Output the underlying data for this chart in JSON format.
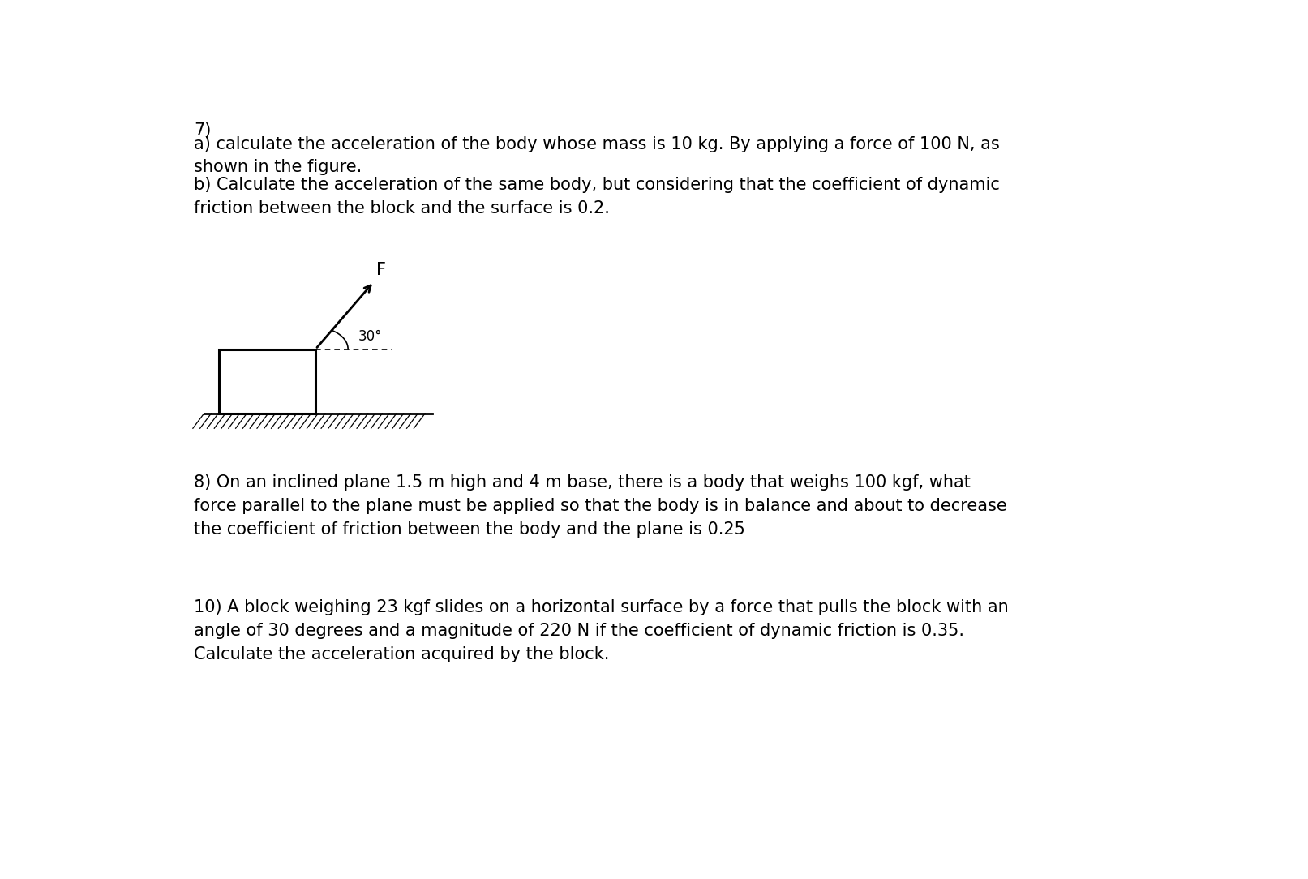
{
  "bg_color": "#ffffff",
  "text_color": "#000000",
  "fig_width": 16.13,
  "fig_height": 10.84,
  "problem7_number": "7)",
  "problem7_a": "a) calculate the acceleration of the body whose mass is 10 kg. By applying a force of 100 N, as\nshown in the figure.",
  "problem7_b": "b) Calculate the acceleration of the same body, but considering that the coefficient of dynamic\nfriction between the block and the surface is 0.2.",
  "problem8": "8) On an inclined plane 1.5 m high and 4 m base, there is a body that weighs 100 kgf, what\nforce parallel to the plane must be applied so that the body is in balance and about to decrease\nthe coefficient of friction between the body and the plane is 0.25",
  "problem10": "10) A block weighing 23 kgf slides on a horizontal surface by a force that pulls the block with an\nangle of 30 degrees and a magnitude of 220 N if the coefficient of dynamic friction is 0.35.\nCalculate the acceleration acquired by the block.",
  "font_size_main": 15.0,
  "F_label": "F",
  "angle_label": "30°"
}
